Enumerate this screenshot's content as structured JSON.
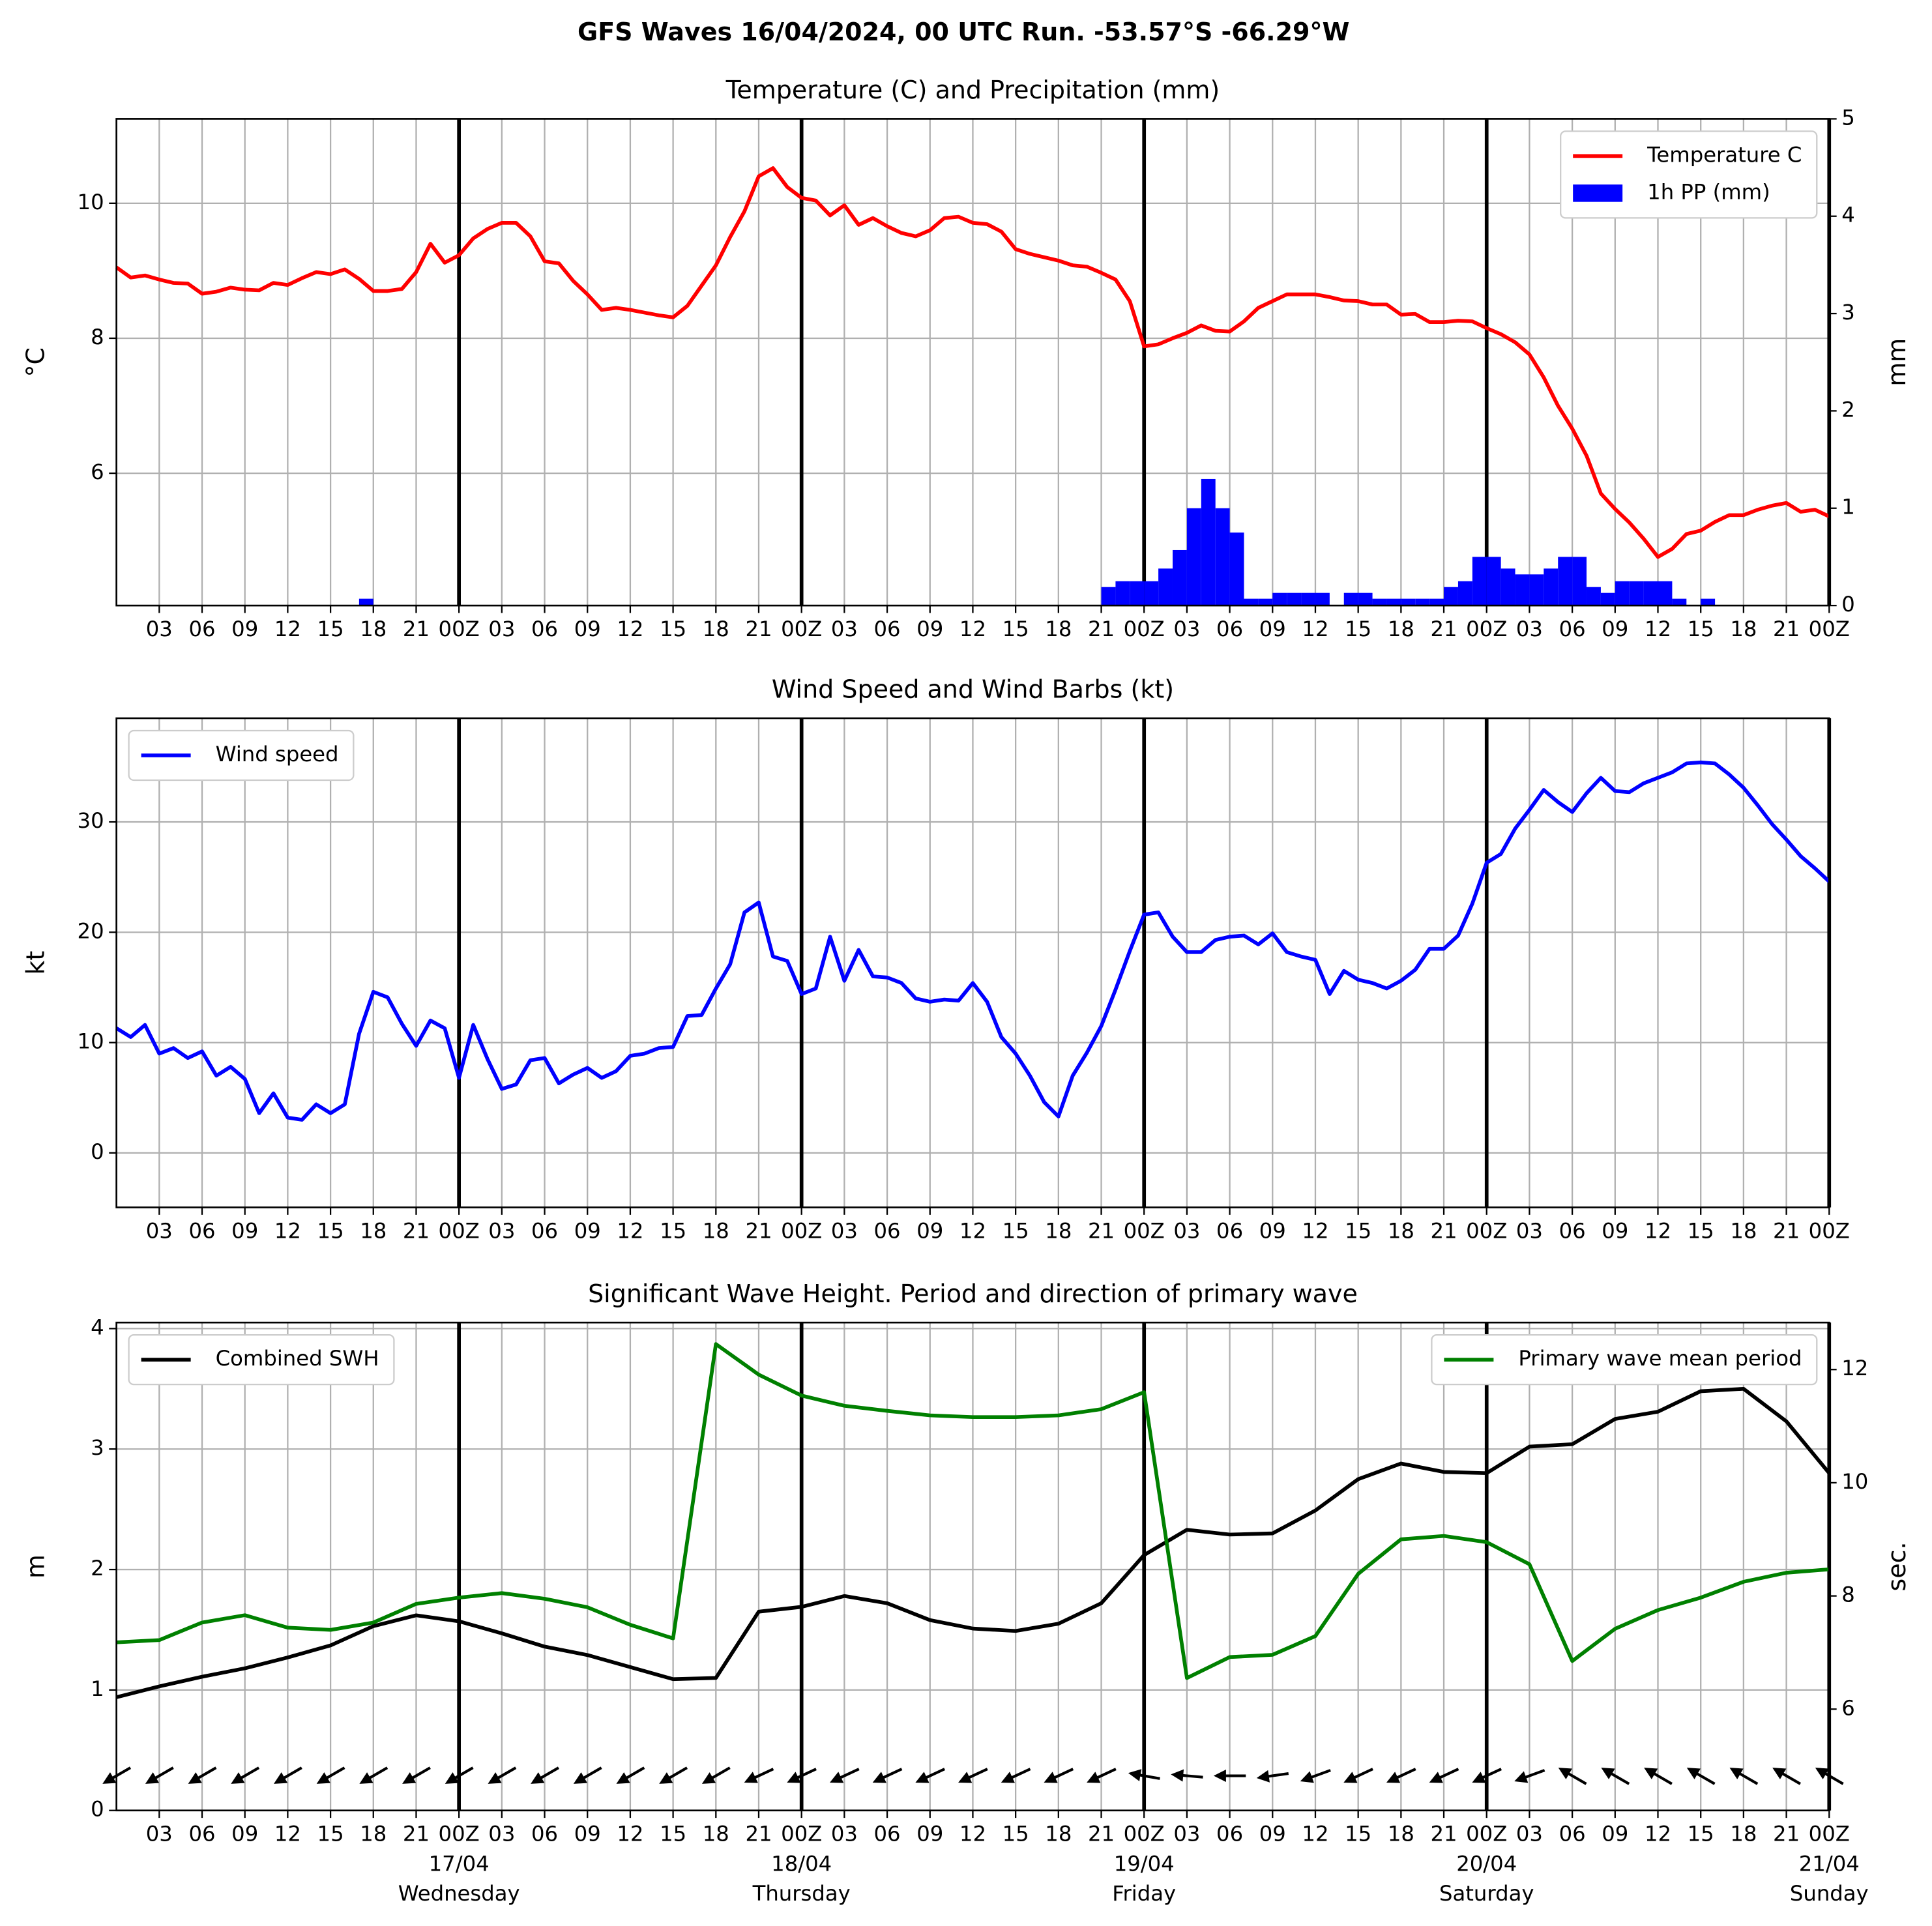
{
  "title": "GFS Waves 16/04/2024, 00 UTC Run. -53.57°S -66.29°W",
  "x_axis": {
    "xlim": [
      0,
      120
    ],
    "xticks": [
      {
        "value": 3,
        "label": "03"
      },
      {
        "value": 6,
        "label": "06"
      },
      {
        "value": 9,
        "label": "09"
      },
      {
        "value": 12,
        "label": "12"
      },
      {
        "value": 15,
        "label": "15"
      },
      {
        "value": 18,
        "label": "18"
      },
      {
        "value": 21,
        "label": "21"
      },
      {
        "value": 24,
        "label": "00Z"
      },
      {
        "value": 27,
        "label": "03"
      },
      {
        "value": 30,
        "label": "06"
      },
      {
        "value": 33,
        "label": "09"
      },
      {
        "value": 36,
        "label": "12"
      },
      {
        "value": 39,
        "label": "15"
      },
      {
        "value": 42,
        "label": "18"
      },
      {
        "value": 45,
        "label": "21"
      },
      {
        "value": 48,
        "label": "00Z"
      },
      {
        "value": 51,
        "label": "03"
      },
      {
        "value": 54,
        "label": "06"
      },
      {
        "value": 57,
        "label": "09"
      },
      {
        "value": 60,
        "label": "12"
      },
      {
        "value": 63,
        "label": "15"
      },
      {
        "value": 66,
        "label": "18"
      },
      {
        "value": 69,
        "label": "21"
      },
      {
        "value": 72,
        "label": "00Z"
      },
      {
        "value": 75,
        "label": "03"
      },
      {
        "value": 78,
        "label": "06"
      },
      {
        "value": 81,
        "label": "09"
      },
      {
        "value": 84,
        "label": "12"
      },
      {
        "value": 87,
        "label": "15"
      },
      {
        "value": 90,
        "label": "18"
      },
      {
        "value": 93,
        "label": "21"
      },
      {
        "value": 96,
        "label": "00Z"
      },
      {
        "value": 99,
        "label": "03"
      },
      {
        "value": 102,
        "label": "06"
      },
      {
        "value": 105,
        "label": "09"
      },
      {
        "value": 108,
        "label": "12"
      },
      {
        "value": 111,
        "label": "15"
      },
      {
        "value": 114,
        "label": "18"
      },
      {
        "value": 117,
        "label": "21"
      },
      {
        "value": 120,
        "label": "00Z"
      }
    ],
    "day_lines": [
      24,
      48,
      72,
      96,
      120
    ]
  },
  "chart_data": [
    {
      "type": "line",
      "title": "Temperature (C) and Precipitation (mm)",
      "ylabel": "°C",
      "y2label": "mm",
      "ylim": [
        4.04,
        11.25
      ],
      "yticks": [
        6,
        8,
        10
      ],
      "y2lim": [
        0,
        5
      ],
      "y2ticks": [
        0,
        1,
        2,
        3,
        4,
        5
      ],
      "grid": true,
      "legend": "upper right",
      "series": [
        {
          "name": "Temperature C",
          "color": "#ff0000",
          "x": [
            0,
            1,
            2,
            3,
            4,
            5,
            6,
            7,
            8,
            9,
            10,
            11,
            12,
            13,
            14,
            15,
            16,
            17,
            18,
            19,
            20,
            21,
            22,
            23,
            24,
            25,
            26,
            27,
            28,
            29,
            30,
            31,
            32,
            33,
            34,
            35,
            36,
            37,
            38,
            39,
            40,
            41,
            42,
            43,
            44,
            45,
            46,
            47,
            48,
            49,
            50,
            51,
            52,
            53,
            54,
            55,
            56,
            57,
            58,
            59,
            60,
            61,
            62,
            63,
            64,
            65,
            66,
            67,
            68,
            69,
            70,
            71,
            72,
            73,
            74,
            75,
            76,
            77,
            78,
            79,
            80,
            81,
            82,
            83,
            84,
            85,
            86,
            87,
            88,
            89,
            90,
            91,
            92,
            93,
            94,
            95,
            96,
            97,
            98,
            99,
            100,
            101,
            102,
            103,
            104,
            105,
            106,
            107,
            108,
            109,
            110,
            111,
            112,
            113,
            114,
            115,
            116,
            117,
            118,
            119,
            120
          ],
          "values": [
            9.05,
            8.9,
            8.93,
            8.87,
            8.82,
            8.81,
            8.66,
            8.69,
            8.75,
            8.72,
            8.71,
            8.82,
            8.79,
            8.89,
            8.98,
            8.95,
            9.02,
            8.88,
            8.7,
            8.7,
            8.73,
            8.98,
            9.4,
            9.12,
            9.23,
            9.48,
            9.62,
            9.71,
            9.71,
            9.51,
            9.14,
            9.11,
            8.85,
            8.65,
            8.42,
            8.45,
            8.42,
            8.38,
            8.34,
            8.31,
            8.48,
            8.78,
            9.08,
            9.5,
            9.88,
            10.4,
            10.52,
            10.24,
            10.08,
            10.04,
            9.82,
            9.97,
            9.68,
            9.78,
            9.66,
            9.56,
            9.51,
            9.6,
            9.78,
            9.8,
            9.71,
            9.69,
            9.58,
            9.32,
            9.25,
            9.2,
            9.15,
            9.08,
            9.06,
            8.97,
            8.87,
            8.55,
            7.88,
            7.91,
            8.0,
            8.08,
            8.19,
            8.11,
            8.1,
            8.25,
            8.45,
            8.55,
            8.65,
            8.65,
            8.65,
            8.61,
            8.56,
            8.55,
            8.5,
            8.5,
            8.35,
            8.36,
            8.24,
            8.24,
            8.26,
            8.25,
            8.15,
            8.06,
            7.94,
            7.76,
            7.42,
            7.0,
            6.66,
            6.26,
            5.7,
            5.47,
            5.27,
            5.03,
            4.76,
            4.88,
            5.1,
            5.15,
            5.28,
            5.38,
            5.38,
            5.46,
            5.52,
            5.56,
            5.43,
            5.46,
            5.36
          ]
        },
        {
          "name": "1h PP (mm)",
          "type": "bar",
          "axis": "y2",
          "color": "#0000ff",
          "x": [
            17,
            69,
            70,
            71,
            72,
            73,
            74,
            75,
            76,
            77,
            78,
            79,
            80,
            81,
            82,
            83,
            84,
            86,
            87,
            88,
            89,
            90,
            91,
            92,
            93,
            94,
            95,
            96,
            97,
            98,
            99,
            100,
            101,
            102,
            103,
            104,
            105,
            106,
            107,
            108,
            109,
            111
          ],
          "values": [
            0.07,
            0.19,
            0.25,
            0.25,
            0.25,
            0.38,
            0.57,
            1.0,
            1.3,
            1.0,
            0.75,
            0.07,
            0.07,
            0.13,
            0.13,
            0.13,
            0.13,
            0.13,
            0.13,
            0.07,
            0.07,
            0.07,
            0.07,
            0.07,
            0.19,
            0.25,
            0.5,
            0.5,
            0.38,
            0.32,
            0.32,
            0.38,
            0.5,
            0.5,
            0.19,
            0.13,
            0.25,
            0.25,
            0.25,
            0.25,
            0.07,
            0.07
          ]
        }
      ]
    },
    {
      "type": "line",
      "title": "Wind Speed and Wind Barbs (kt)",
      "ylabel": "kt",
      "ylim": [
        -4.94,
        39.4
      ],
      "yticks": [
        0,
        10,
        20,
        30
      ],
      "grid": true,
      "legend": "upper left",
      "series": [
        {
          "name": "Wind speed",
          "color": "#0000ff",
          "x": [
            0,
            1,
            2,
            3,
            4,
            5,
            6,
            7,
            8,
            9,
            10,
            11,
            12,
            13,
            14,
            15,
            16,
            17,
            18,
            19,
            20,
            21,
            22,
            23,
            24,
            25,
            26,
            27,
            28,
            29,
            30,
            31,
            32,
            33,
            34,
            35,
            36,
            37,
            38,
            39,
            40,
            41,
            42,
            43,
            44,
            45,
            46,
            47,
            48,
            49,
            50,
            51,
            52,
            53,
            54,
            55,
            56,
            57,
            58,
            59,
            60,
            61,
            62,
            63,
            64,
            65,
            66,
            67,
            68,
            69,
            70,
            71,
            72,
            73,
            74,
            75,
            76,
            77,
            78,
            79,
            80,
            81,
            82,
            83,
            84,
            85,
            86,
            87,
            88,
            89,
            90,
            91,
            92,
            93,
            94,
            95,
            96,
            97,
            98,
            99,
            100,
            101,
            102,
            103,
            104,
            105,
            106,
            107,
            108,
            109,
            110,
            111,
            112,
            113,
            114,
            115,
            116,
            117,
            118,
            119,
            120
          ],
          "values": [
            11.3,
            10.5,
            11.6,
            9.0,
            9.5,
            8.6,
            9.2,
            7.0,
            7.8,
            6.7,
            3.6,
            5.4,
            3.2,
            3.0,
            4.4,
            3.6,
            4.4,
            10.8,
            14.6,
            14.1,
            11.7,
            9.7,
            12.0,
            11.3,
            6.8,
            11.6,
            8.5,
            5.8,
            6.2,
            8.4,
            8.6,
            6.3,
            7.1,
            7.7,
            6.8,
            7.4,
            8.8,
            9.0,
            9.5,
            9.6,
            12.4,
            12.5,
            14.9,
            17.1,
            21.8,
            22.7,
            17.8,
            17.4,
            14.4,
            14.9,
            19.6,
            15.6,
            18.4,
            16.0,
            15.9,
            15.4,
            14.0,
            13.7,
            13.9,
            13.8,
            15.4,
            13.7,
            10.5,
            9.0,
            7.0,
            4.6,
            3.3,
            7.0,
            9.1,
            11.5,
            14.8,
            18.3,
            21.6,
            21.8,
            19.6,
            18.2,
            18.2,
            19.3,
            19.6,
            19.7,
            18.9,
            19.9,
            18.2,
            17.8,
            17.5,
            14.4,
            16.5,
            15.7,
            15.4,
            14.9,
            15.6,
            16.6,
            18.5,
            18.5,
            19.7,
            22.6,
            26.3,
            27.1,
            29.4,
            31.1,
            32.9,
            31.8,
            30.9,
            32.6,
            34.0,
            32.8,
            32.7,
            33.5,
            34.0,
            34.5,
            35.3,
            35.4,
            35.3,
            34.3,
            33.1,
            31.5,
            29.8,
            28.4,
            26.9,
            25.8,
            24.6
          ]
        }
      ]
    },
    {
      "type": "line",
      "title": "Significant Wave Height. Period and direction of primary wave",
      "ylabel": "m",
      "y2label": "sec.",
      "y2label_color": "#008000",
      "ylim": [
        0,
        4.05
      ],
      "yticks": [
        0,
        1,
        2,
        3,
        4
      ],
      "y2lim": [
        4.21,
        12.83
      ],
      "y2ticks": [
        6,
        8,
        10,
        12
      ],
      "grid": true,
      "series": [
        {
          "name": "Combined SWH",
          "color": "#000000",
          "legend": "upper left",
          "x": [
            0,
            3,
            6,
            9,
            12,
            15,
            18,
            21,
            24,
            27,
            30,
            33,
            36,
            39,
            42,
            45,
            48,
            51,
            54,
            57,
            60,
            63,
            66,
            69,
            72,
            75,
            78,
            81,
            84,
            87,
            90,
            93,
            96,
            99,
            102,
            105,
            108,
            111,
            114,
            117,
            120
          ],
          "values": [
            0.94,
            1.03,
            1.11,
            1.18,
            1.27,
            1.37,
            1.53,
            1.62,
            1.57,
            1.47,
            1.36,
            1.29,
            1.19,
            1.09,
            1.1,
            1.65,
            1.69,
            1.78,
            1.72,
            1.58,
            1.51,
            1.49,
            1.55,
            1.72,
            2.12,
            2.33,
            2.29,
            2.3,
            2.49,
            2.75,
            2.88,
            2.81,
            2.8,
            3.02,
            3.04,
            3.25,
            3.31,
            3.48,
            3.5,
            3.23,
            2.8
          ]
        },
        {
          "name": "Primary wave mean period",
          "color": "#008000",
          "axis": "y2",
          "legend": "upper right",
          "x": [
            0,
            3,
            6,
            9,
            12,
            15,
            18,
            21,
            24,
            27,
            30,
            33,
            36,
            39,
            42,
            45,
            48,
            51,
            54,
            57,
            60,
            63,
            66,
            69,
            72,
            75,
            78,
            81,
            84,
            87,
            90,
            93,
            96,
            99,
            102,
            105,
            108,
            111,
            114,
            117,
            120
          ],
          "values": [
            7.18,
            7.22,
            7.53,
            7.66,
            7.44,
            7.4,
            7.53,
            7.86,
            7.97,
            8.05,
            7.95,
            7.8,
            7.49,
            7.25,
            12.45,
            11.91,
            11.54,
            11.36,
            11.27,
            11.19,
            11.16,
            11.16,
            11.19,
            11.3,
            11.6,
            6.55,
            6.92,
            6.96,
            7.29,
            8.39,
            9.0,
            9.06,
            8.95,
            8.56,
            6.85,
            7.42,
            7.75,
            7.97,
            8.25,
            8.41,
            8.47
          ]
        }
      ],
      "wave_direction": {
        "color": "#000000",
        "x": [
          0,
          3,
          6,
          9,
          12,
          15,
          18,
          21,
          24,
          27,
          30,
          33,
          36,
          39,
          42,
          45,
          48,
          51,
          54,
          57,
          60,
          63,
          66,
          69,
          72,
          75,
          78,
          81,
          84,
          87,
          90,
          93,
          96,
          99,
          102,
          105,
          108,
          111,
          114,
          117,
          120
        ],
        "values": [
          240,
          240,
          240,
          240,
          240,
          240,
          240,
          240,
          240,
          240,
          240,
          240,
          240,
          240,
          240,
          245,
          245,
          245,
          245,
          245,
          245,
          245,
          245,
          245,
          280,
          275,
          270,
          262,
          250,
          245,
          245,
          245,
          245,
          250,
          300,
          300,
          300,
          300,
          300,
          300,
          300
        ]
      },
      "day_labels": [
        {
          "value": 24,
          "date": "17/04",
          "day": "Wednesday"
        },
        {
          "value": 48,
          "date": "18/04",
          "day": "Thursday"
        },
        {
          "value": 72,
          "date": "19/04",
          "day": "Friday"
        },
        {
          "value": 96,
          "date": "20/04",
          "day": "Saturday"
        },
        {
          "value": 120,
          "date": "21/04",
          "day": "Sunday"
        }
      ]
    }
  ]
}
